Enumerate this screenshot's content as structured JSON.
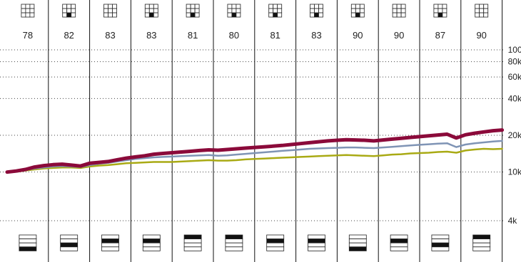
{
  "chart_data": {
    "type": "line",
    "scale": "log",
    "y_tick_labels": [
      "100k",
      "80k",
      "60k",
      "40k",
      "20k",
      "10k",
      "4k"
    ],
    "y_tick_values": [
      100000,
      80000,
      60000,
      40000,
      20000,
      10000,
      4000
    ],
    "ylim": [
      3000,
      100000
    ],
    "grid": "dotted horizontal",
    "columns": [
      {
        "score": "78",
        "style_box": [
          0,
          0,
          0,
          0,
          0,
          0,
          0,
          0,
          0
        ],
        "size_bar": 3
      },
      {
        "score": "82",
        "style_box": [
          0,
          0,
          0,
          0,
          0,
          0,
          0,
          1,
          0
        ],
        "size_bar": 2
      },
      {
        "score": "83",
        "style_box": [
          0,
          0,
          0,
          0,
          0,
          0,
          0,
          0,
          0
        ],
        "size_bar": 1
      },
      {
        "score": "83",
        "style_box": [
          0,
          0,
          0,
          0,
          0,
          0,
          0,
          1,
          0
        ],
        "size_bar": 1
      },
      {
        "score": "81",
        "style_box": [
          0,
          0,
          0,
          0,
          0,
          0,
          0,
          1,
          0
        ],
        "size_bar": 0
      },
      {
        "score": "80",
        "style_box": [
          0,
          0,
          0,
          0,
          0,
          0,
          0,
          1,
          0
        ],
        "size_bar": 0
      },
      {
        "score": "81",
        "style_box": [
          0,
          0,
          0,
          0,
          0,
          0,
          0,
          1,
          0
        ],
        "size_bar": 1
      },
      {
        "score": "83",
        "style_box": [
          0,
          0,
          0,
          0,
          0,
          0,
          0,
          1,
          0
        ],
        "size_bar": 1
      },
      {
        "score": "90",
        "style_box": [
          0,
          0,
          0,
          0,
          0,
          0,
          0,
          1,
          0
        ],
        "size_bar": 3
      },
      {
        "score": "90",
        "style_box": [
          0,
          0,
          0,
          0,
          0,
          0,
          0,
          0,
          0
        ],
        "size_bar": 1
      },
      {
        "score": "87",
        "style_box": [
          0,
          0,
          0,
          0,
          0,
          0,
          0,
          1,
          0
        ],
        "size_bar": 2
      },
      {
        "score": "90",
        "style_box": [
          0,
          0,
          0,
          0,
          0,
          0,
          0,
          0,
          0
        ],
        "size_bar": 0
      }
    ],
    "series": [
      {
        "color": "#8b0a3a",
        "values": [
          10000,
          10200,
          10500,
          11000,
          11300,
          11500,
          11600,
          11400,
          11200,
          11800,
          12000,
          12200,
          12600,
          13000,
          13300,
          13600,
          14000,
          14200,
          14400,
          14600,
          14800,
          15000,
          15200,
          15100,
          15300,
          15500,
          15700,
          15900,
          16100,
          16300,
          16500,
          16800,
          17100,
          17400,
          17700,
          18000,
          18200,
          18400,
          18300,
          18200,
          18000,
          18300,
          18600,
          18900,
          19200,
          19500,
          19800,
          20100,
          20400,
          19000,
          20200,
          20800,
          21300,
          21800,
          22100
        ]
      },
      {
        "color": "#7f94b5",
        "values": [
          10000,
          10100,
          10400,
          10700,
          10900,
          11100,
          11200,
          11100,
          11000,
          11400,
          11700,
          11900,
          12200,
          12500,
          12800,
          13000,
          13200,
          13300,
          13400,
          13500,
          13600,
          13700,
          13800,
          13600,
          13700,
          13900,
          14100,
          14300,
          14500,
          14700,
          14900,
          15100,
          15300,
          15500,
          15600,
          15700,
          15800,
          15900,
          15900,
          15800,
          15700,
          15900,
          16100,
          16300,
          16500,
          16700,
          16900,
          17100,
          17200,
          16000,
          16800,
          17200,
          17500,
          17800,
          18000
        ]
      },
      {
        "color": "#a9aa14",
        "values": [
          10000,
          10050,
          10300,
          10500,
          10700,
          10800,
          10900,
          10900,
          10800,
          11100,
          11300,
          11400,
          11600,
          11800,
          11900,
          12000,
          12100,
          12100,
          12100,
          12200,
          12300,
          12400,
          12500,
          12400,
          12400,
          12500,
          12700,
          12800,
          12900,
          13000,
          13100,
          13200,
          13300,
          13400,
          13500,
          13600,
          13700,
          13800,
          13700,
          13600,
          13500,
          13700,
          13900,
          14000,
          14200,
          14300,
          14400,
          14600,
          14700,
          14400,
          15000,
          15300,
          15500,
          15400,
          15500
        ]
      }
    ]
  },
  "colors": {
    "grid": "#444444",
    "divider": "#111111",
    "icon_fill": "#111111",
    "icon_empty": "#ffffff"
  }
}
